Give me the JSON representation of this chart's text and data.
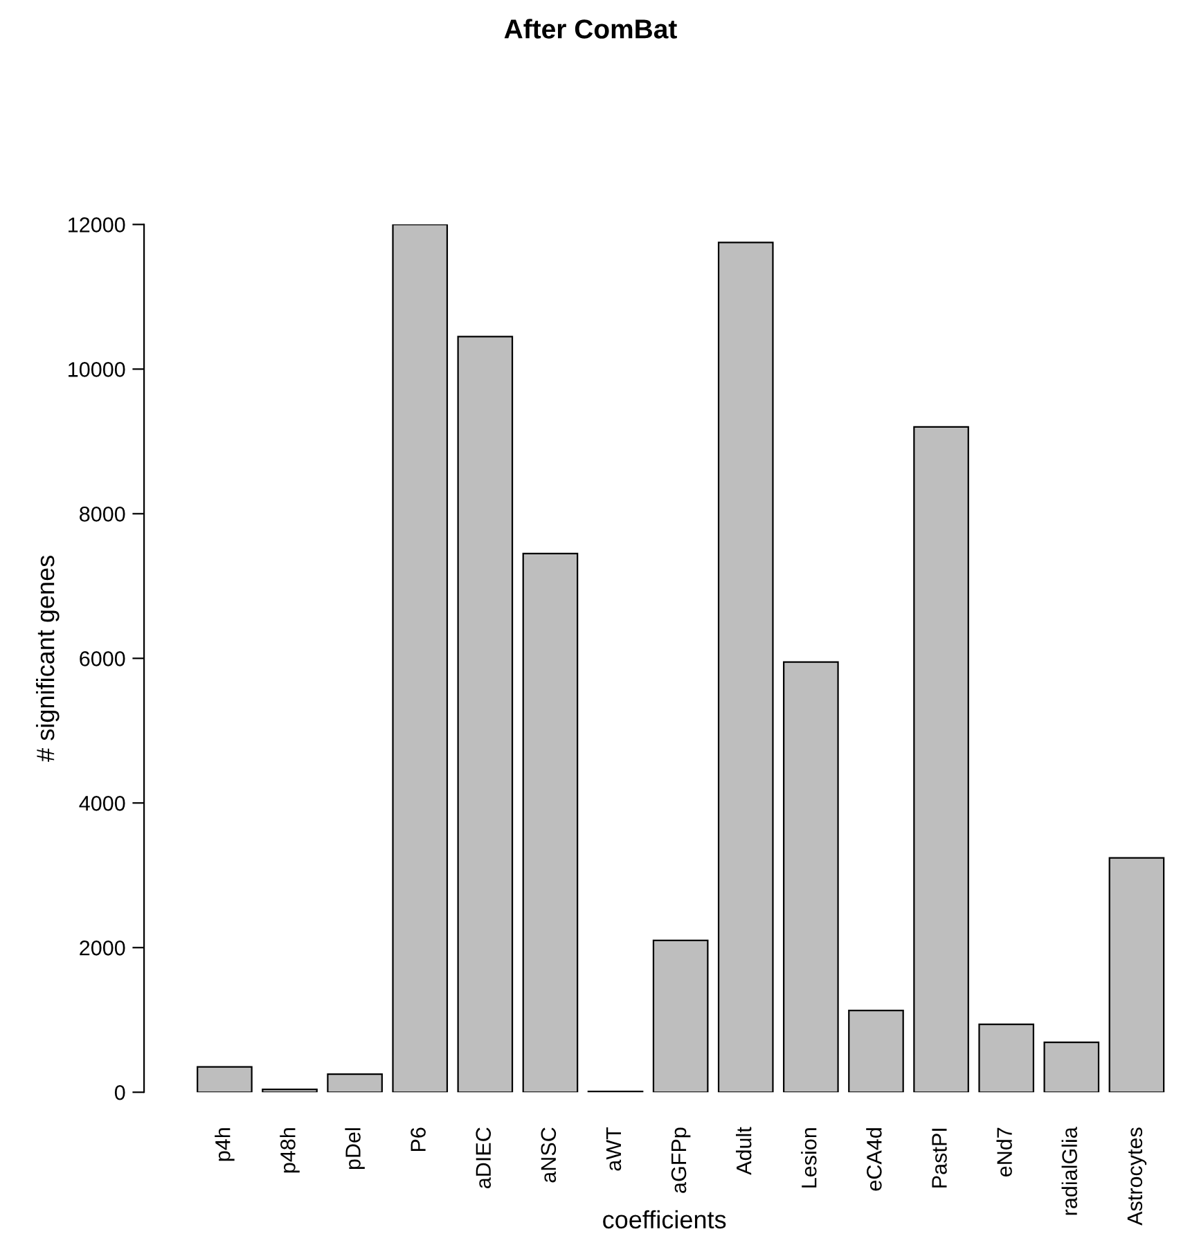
{
  "chart_data": {
    "type": "bar",
    "title": "After ComBat",
    "xlabel": "coefficients",
    "ylabel": "# significant genes",
    "categories": [
      "p4h",
      "p48h",
      "pDel",
      "P6",
      "aDIEC",
      "aNSC",
      "aWT",
      "aGFPp",
      "Adult",
      "Lesion",
      "eCA4d",
      "PastPI",
      "eNd7",
      "radialGlia",
      "Astrocytes"
    ],
    "values": [
      350,
      40,
      250,
      12000,
      10450,
      7450,
      10,
      2100,
      11750,
      5950,
      1130,
      9200,
      940,
      690,
      3240
    ],
    "color": "#bebebe",
    "ylim": [
      0,
      12000
    ],
    "yticks": [
      0,
      2000,
      4000,
      6000,
      8000,
      10000,
      12000
    ],
    "grid": false,
    "legend": false
  }
}
